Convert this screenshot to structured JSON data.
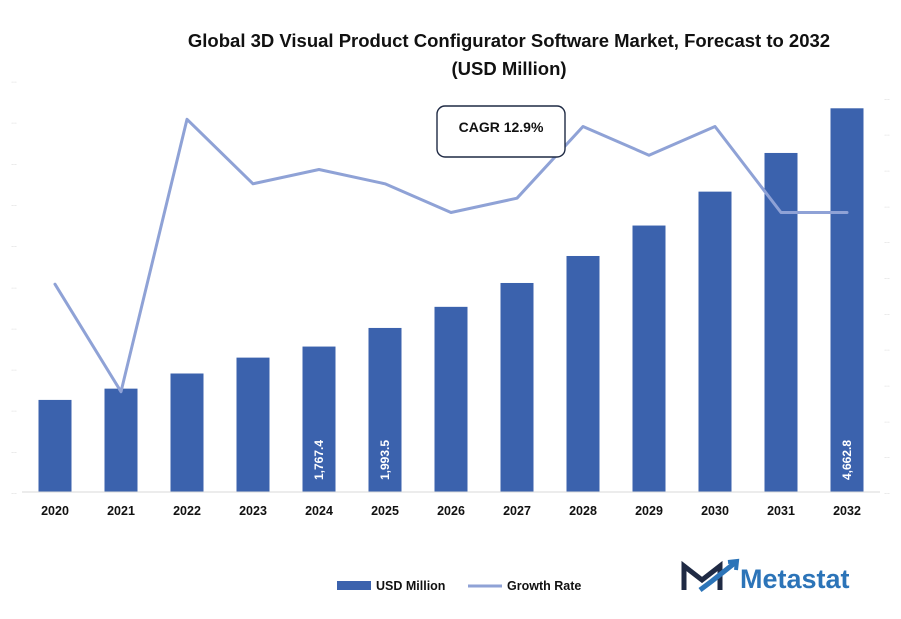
{
  "chart_data": {
    "type": "bar",
    "title": "Global 3D Visual Product Configurator Software Market, Forecast to 2032",
    "subtitle": "(USD Million)",
    "categories": [
      "2020",
      "2021",
      "2022",
      "2023",
      "2024",
      "2025",
      "2026",
      "2027",
      "2028",
      "2029",
      "2030",
      "2031",
      "2032"
    ],
    "series": [
      {
        "name": "USD Million",
        "kind": "bar",
        "color": "#3b62ad",
        "values": [
          1119,
          1256,
          1440,
          1633,
          1767.4,
          1993.5,
          2250,
          2540,
          2868,
          3238,
          3650,
          4120,
          4662.8
        ],
        "labels": [
          "",
          "",
          "",
          "",
          "1,767.4",
          "1,993.5",
          "",
          "",
          "",
          "",
          "",
          "",
          "4,662.8"
        ]
      },
      {
        "name": "Growth Rate",
        "kind": "line",
        "color": "#8fa2d6",
        "values": [
          12.4,
          10.9,
          14.7,
          13.8,
          14.0,
          13.8,
          13.4,
          13.6,
          14.6,
          14.2,
          14.6,
          13.4,
          13.4
        ]
      }
    ],
    "bar_axis": {
      "ylim": [
        0,
        4800
      ],
      "ticks": [
        0,
        500,
        1000,
        1500,
        2000,
        2500,
        3000,
        3500,
        4000,
        4500,
        5000
      ]
    },
    "line_axis": {
      "ylim": [
        9.5,
        15.5
      ],
      "ticks": [
        9.5,
        10,
        10.5,
        11,
        11.5,
        12,
        12.5,
        13,
        13.5,
        14,
        14.5,
        15
      ]
    },
    "annotation": {
      "text": "CAGR 12.9%"
    },
    "legend": {
      "position": "bottom-center"
    },
    "grid": false
  },
  "logo": {
    "text": "Metastat",
    "color": "#2c74b8",
    "mark_color": "#1f2a44"
  }
}
